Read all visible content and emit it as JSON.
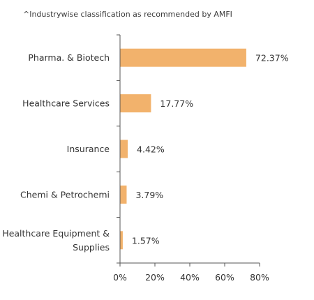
{
  "chart_data": {
    "type": "bar",
    "orientation": "horizontal",
    "note": "^Industrywise classification as recommended by AMFI",
    "categories": [
      [
        "Pharma. & Biotech"
      ],
      [
        "Healthcare Services"
      ],
      [
        "Insurance"
      ],
      [
        "Chemi & Petrochemi"
      ],
      [
        "Healthcare Equipment &",
        "Supplies"
      ]
    ],
    "values": [
      72.37,
      17.77,
      4.42,
      3.79,
      1.57
    ],
    "value_labels": [
      "72.37%",
      "17.77%",
      "4.42%",
      "3.79%",
      "1.57%"
    ],
    "x_ticks": [
      "0%",
      "20%",
      "40%",
      "60%",
      "80%"
    ],
    "xlim": [
      0,
      80
    ],
    "grid": false,
    "colors": {
      "bar": "#F2B26C",
      "axis": "#555555",
      "text": "#333333"
    }
  }
}
